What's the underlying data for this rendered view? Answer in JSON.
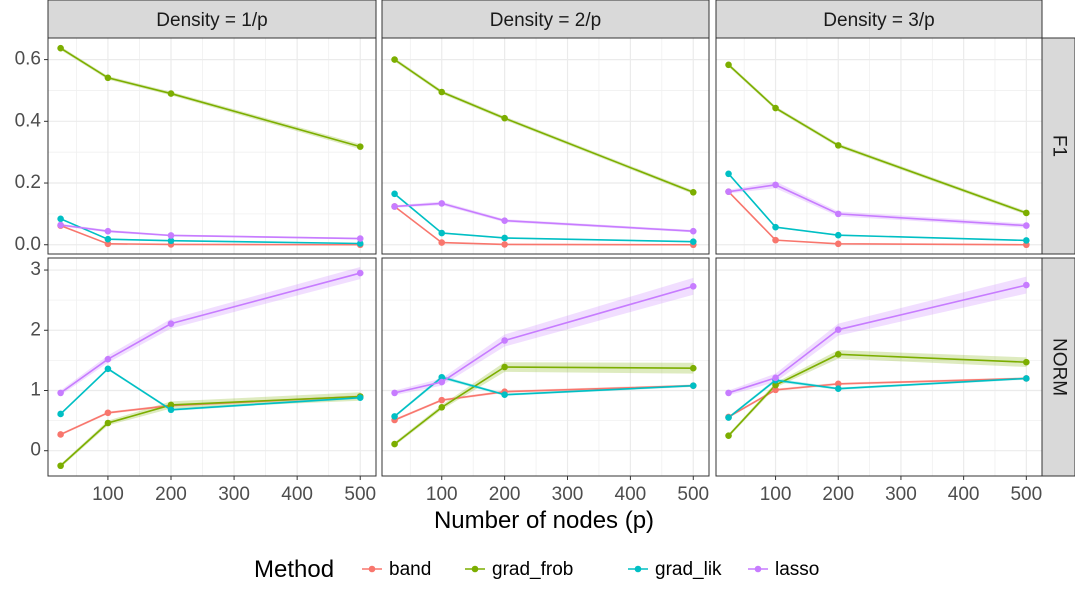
{
  "chart_data": {
    "type": "line",
    "xlabel": "Number of nodes (p)",
    "x_ticks": [
      100,
      200,
      300,
      400,
      500
    ],
    "xlim": [
      5,
      525
    ],
    "columns": [
      {
        "key": "d1",
        "label": "Density = 1/p"
      },
      {
        "key": "d2",
        "label": "Density = 2/p"
      },
      {
        "key": "d3",
        "label": "Density = 3/p"
      }
    ],
    "rows": [
      {
        "key": "F1",
        "label": "F1",
        "ylim": [
          -0.03,
          0.67
        ],
        "y_ticks": [
          0.0,
          0.2,
          0.4,
          0.6
        ],
        "y_tick_labels": [
          "0.0",
          "0.2",
          "0.4",
          "0.6"
        ]
      },
      {
        "key": "NORM",
        "label": "NORM",
        "ylim": [
          -0.42,
          3.2
        ],
        "y_ticks": [
          0,
          1,
          2,
          3
        ],
        "y_tick_labels": [
          "0",
          "1",
          "2",
          "3"
        ]
      }
    ],
    "x": [
      25,
      100,
      200,
      500
    ],
    "legend": {
      "title": "Method",
      "position": "bottom"
    },
    "series": [
      {
        "name": "band",
        "color": "#F8766D"
      },
      {
        "name": "grad_frob",
        "color": "#7CAE00"
      },
      {
        "name": "grad_lik",
        "color": "#00BFC4"
      },
      {
        "name": "lasso",
        "color": "#C77CFF"
      }
    ],
    "values": {
      "F1": {
        "d1": {
          "band": [
            0.062,
            0.003,
            0.001,
            0.0
          ],
          "grad_frob": [
            0.637,
            0.541,
            0.49,
            0.318
          ],
          "grad_lik": [
            0.084,
            0.018,
            0.013,
            0.004
          ],
          "lasso": [
            0.064,
            0.044,
            0.03,
            0.02
          ]
        },
        "d2": {
          "band": [
            0.124,
            0.007,
            0.001,
            0.0
          ],
          "grad_frob": [
            0.6,
            0.495,
            0.41,
            0.17
          ],
          "grad_lik": [
            0.165,
            0.038,
            0.022,
            0.01
          ],
          "lasso": [
            0.124,
            0.134,
            0.078,
            0.044
          ]
        },
        "d3": {
          "band": [
            0.172,
            0.015,
            0.003,
            0.0
          ],
          "grad_frob": [
            0.583,
            0.443,
            0.322,
            0.103
          ],
          "grad_lik": [
            0.23,
            0.057,
            0.031,
            0.014
          ],
          "lasso": [
            0.172,
            0.194,
            0.1,
            0.062
          ]
        }
      },
      "NORM": {
        "d1": {
          "band": [
            0.27,
            0.63,
            0.75,
            0.9
          ],
          "grad_frob": [
            -0.25,
            0.46,
            0.76,
            0.9
          ],
          "grad_lik": [
            0.61,
            1.36,
            0.68,
            0.88
          ],
          "lasso": [
            0.96,
            1.52,
            2.11,
            2.95
          ]
        },
        "d2": {
          "band": [
            0.51,
            0.84,
            0.98,
            1.08
          ],
          "grad_frob": [
            0.11,
            0.72,
            1.39,
            1.37
          ],
          "grad_lik": [
            0.57,
            1.22,
            0.93,
            1.08
          ],
          "lasso": [
            0.96,
            1.14,
            1.83,
            2.73
          ]
        },
        "d3": {
          "band": [
            0.56,
            1.01,
            1.11,
            1.2
          ],
          "grad_frob": [
            0.25,
            1.09,
            1.6,
            1.47
          ],
          "grad_lik": [
            0.55,
            1.17,
            1.03,
            1.2
          ],
          "lasso": [
            0.96,
            1.21,
            2.01,
            2.75
          ]
        }
      }
    },
    "bands": {
      "F1": {
        "d1": {
          "band": [
            0,
            0,
            0,
            0
          ],
          "grad_frob": [
            0.006,
            0.006,
            0.006,
            0.008
          ],
          "grad_lik": [
            0.003,
            0.002,
            0.002,
            0.001
          ],
          "lasso": [
            0.004,
            0.004,
            0.003,
            0.003
          ]
        },
        "d2": {
          "band": [
            0,
            0,
            0,
            0
          ],
          "grad_frob": [
            0.006,
            0.006,
            0.006,
            0.006
          ],
          "grad_lik": [
            0.004,
            0.003,
            0.002,
            0.001
          ],
          "lasso": [
            0.004,
            0.006,
            0.005,
            0.004
          ]
        },
        "d3": {
          "band": [
            0,
            0,
            0,
            0
          ],
          "grad_frob": [
            0.006,
            0.006,
            0.006,
            0.006
          ],
          "grad_lik": [
            0.004,
            0.003,
            0.002,
            0.001
          ],
          "lasso": [
            0.006,
            0.011,
            0.008,
            0.007
          ]
        }
      },
      "NORM": {
        "d1": {
          "band": [
            0.02,
            0.02,
            0.02,
            0.02
          ],
          "grad_frob": [
            0.03,
            0.04,
            0.06,
            0.07
          ],
          "grad_lik": [
            0.02,
            0.02,
            0.02,
            0.02
          ],
          "lasso": [
            0.04,
            0.06,
            0.08,
            0.1
          ]
        },
        "d2": {
          "band": [
            0.02,
            0.02,
            0.02,
            0.02
          ],
          "grad_frob": [
            0.03,
            0.04,
            0.08,
            0.09
          ],
          "grad_lik": [
            0.02,
            0.03,
            0.02,
            0.02
          ],
          "lasso": [
            0.04,
            0.06,
            0.1,
            0.14
          ]
        },
        "d3": {
          "band": [
            0.02,
            0.02,
            0.02,
            0.02
          ],
          "grad_frob": [
            0.03,
            0.04,
            0.07,
            0.08
          ],
          "grad_lik": [
            0.02,
            0.03,
            0.02,
            0.02
          ],
          "lasso": [
            0.04,
            0.07,
            0.1,
            0.14
          ]
        }
      }
    }
  }
}
